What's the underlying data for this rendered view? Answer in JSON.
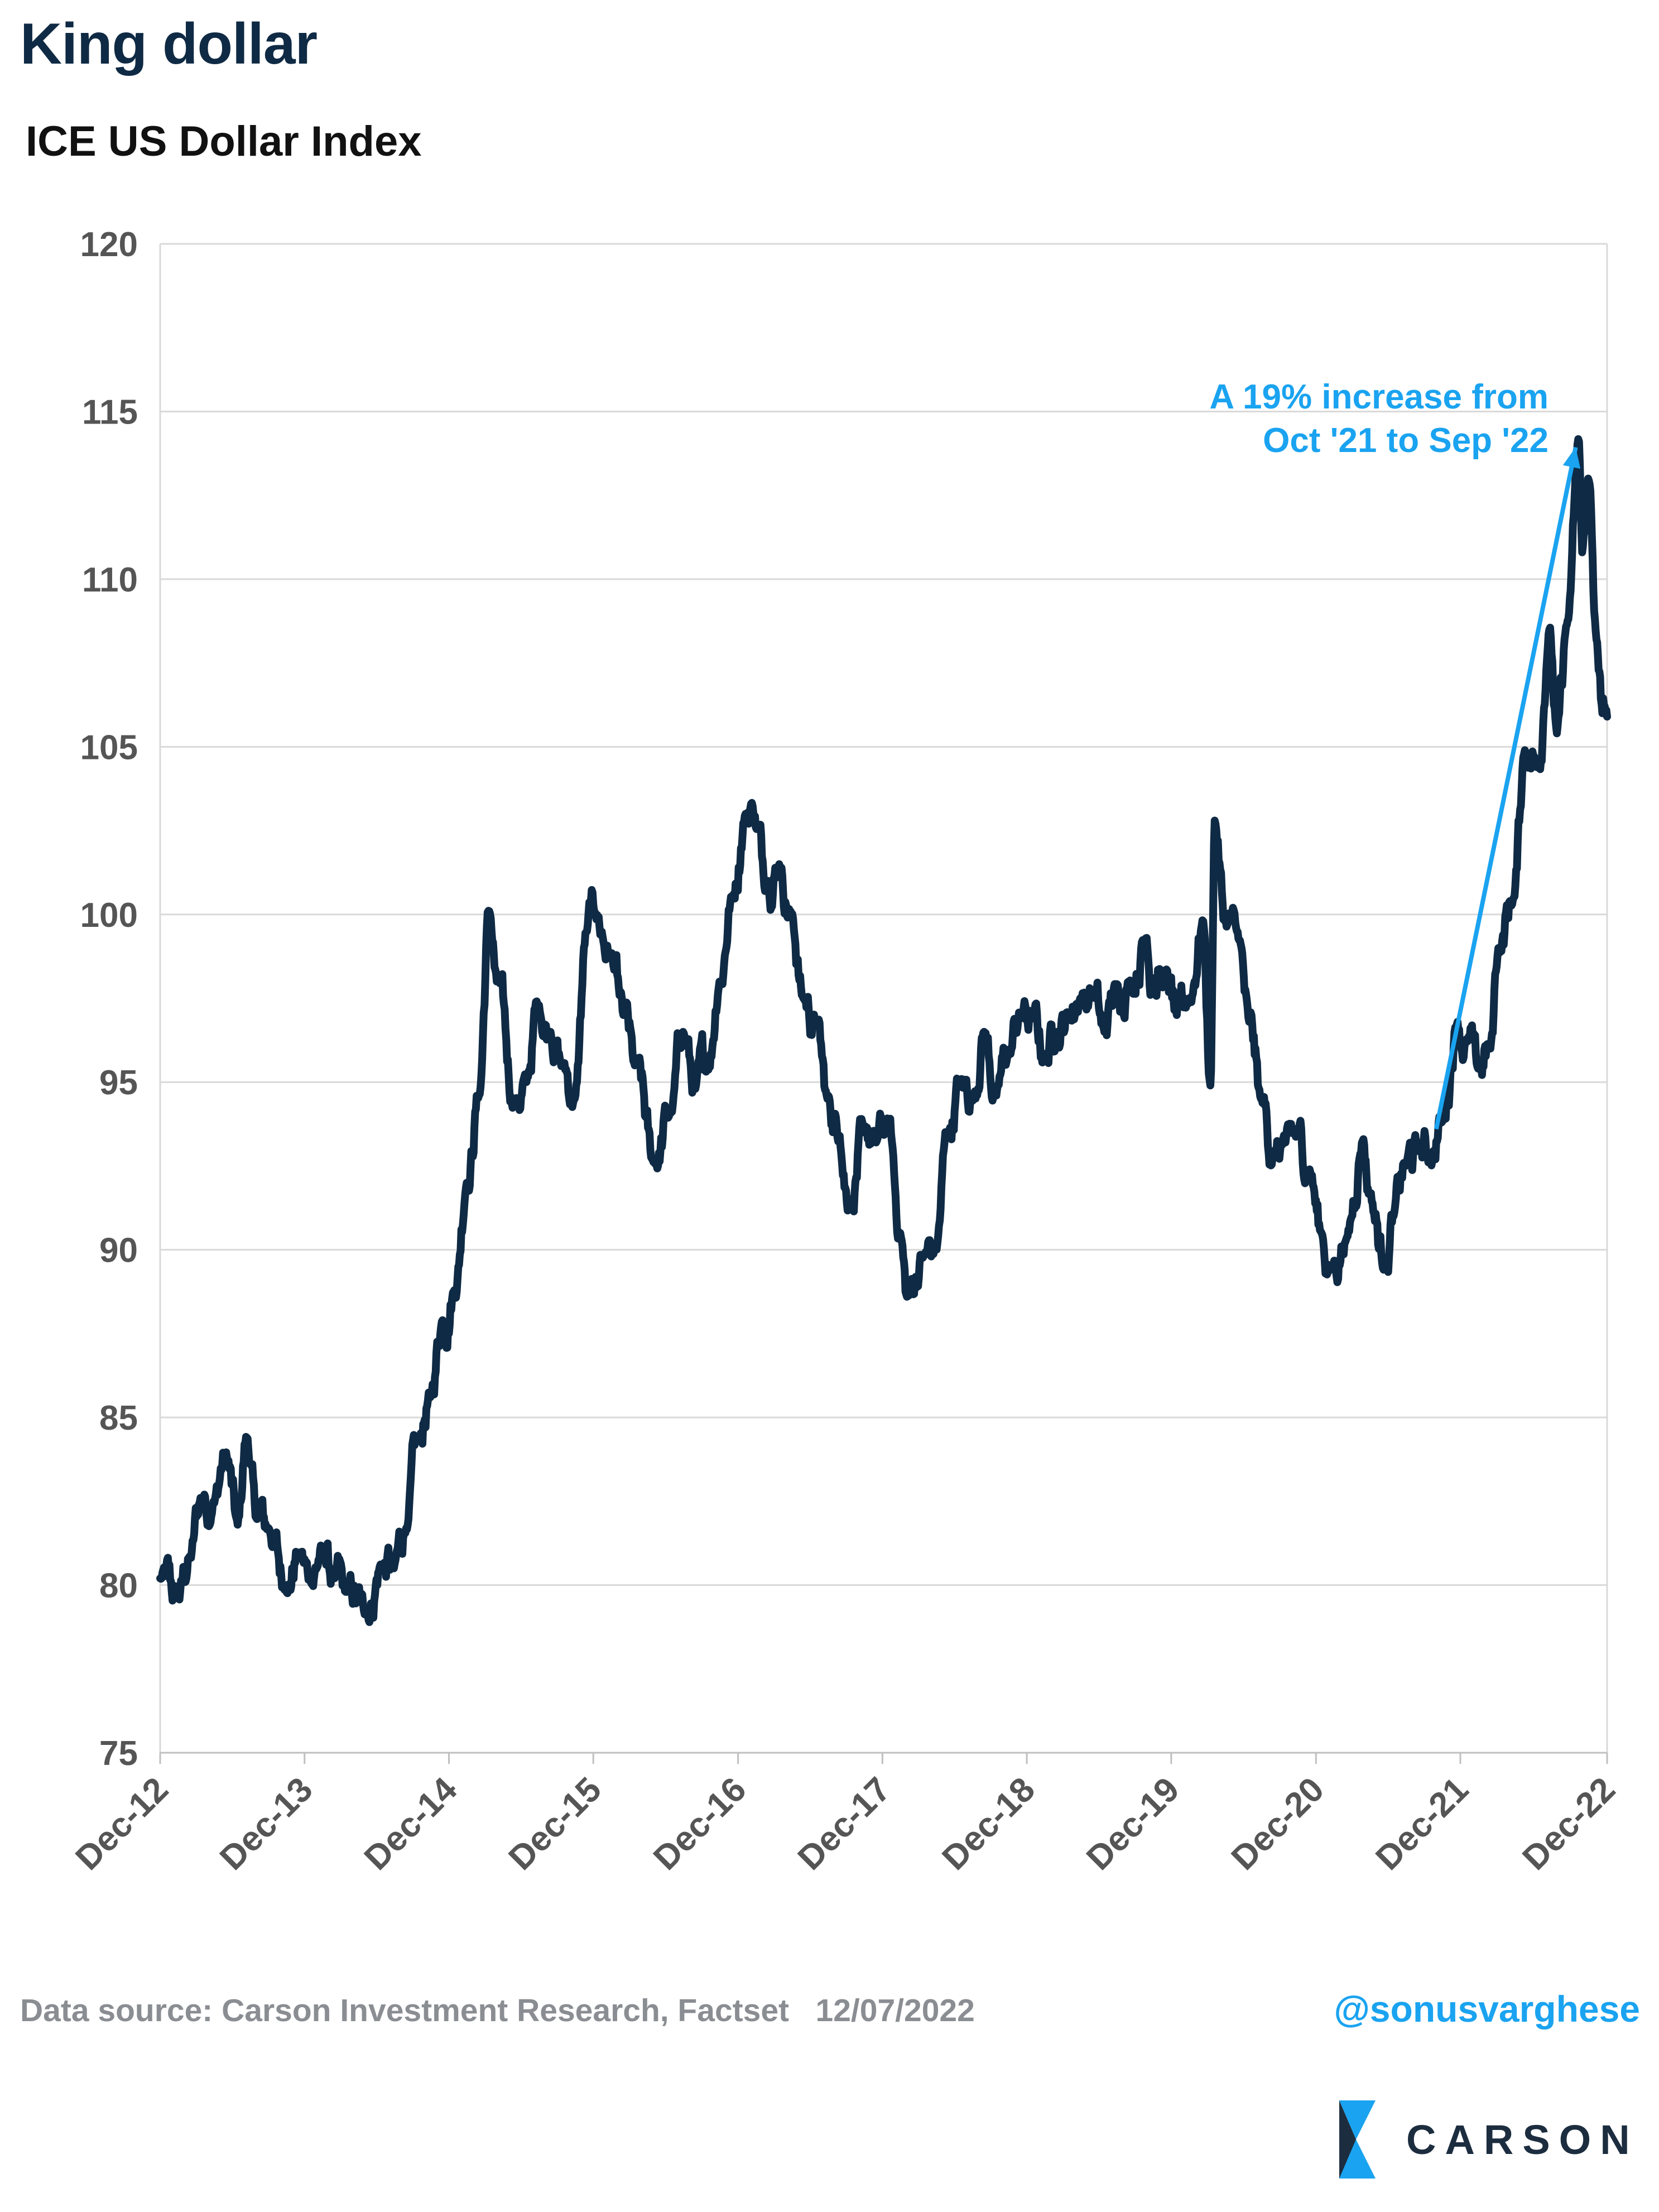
{
  "header": {
    "title": "King dollar",
    "subtitle": "ICE US Dollar Index"
  },
  "footer": {
    "source": "Data source: Carson Investment Research, Factset   12/07/2022",
    "handle": "@sonusvarghese"
  },
  "logo": {
    "text": "CARSON",
    "icon": "carson-chevron-icon"
  },
  "colors": {
    "series": "#0f2a44",
    "annotation": "#1aa3f0",
    "grid": "#d9d9d9",
    "axis_text": "#555555"
  },
  "chart_data": {
    "type": "line",
    "ylim": [
      75,
      120
    ],
    "yticks": [
      75,
      80,
      85,
      90,
      95,
      100,
      105,
      110,
      115,
      120
    ],
    "xlim": [
      "Dec-12",
      "Dec-22"
    ],
    "xticks": [
      "Dec-12",
      "Dec-13",
      "Dec-14",
      "Dec-15",
      "Dec-16",
      "Dec-17",
      "Dec-18",
      "Dec-19",
      "Dec-20",
      "Dec-21",
      "Dec-22"
    ],
    "grid": true,
    "legend": "none",
    "series": [
      {
        "values_points": [
          [
            "2012-12-01",
            80.2
          ],
          [
            "2013-01-15",
            79.6
          ],
          [
            "2013-02-15",
            80.8
          ],
          [
            "2013-03-15",
            82.6
          ],
          [
            "2013-04-15",
            82.5
          ],
          [
            "2013-05-15",
            83.9
          ],
          [
            "2013-06-15",
            81.8
          ],
          [
            "2013-07-08",
            84.4
          ],
          [
            "2013-08-01",
            82.0
          ],
          [
            "2013-09-01",
            81.7
          ],
          [
            "2013-10-15",
            80.0
          ],
          [
            "2013-11-15",
            80.9
          ],
          [
            "2013-12-15",
            80.2
          ],
          [
            "2014-01-15",
            81.0
          ],
          [
            "2014-02-15",
            80.2
          ],
          [
            "2014-03-15",
            79.8
          ],
          [
            "2014-05-06",
            79.2
          ],
          [
            "2014-06-15",
            80.6
          ],
          [
            "2014-07-15",
            80.5
          ],
          [
            "2014-08-15",
            81.7
          ],
          [
            "2014-09-15",
            84.3
          ],
          [
            "2014-10-15",
            85.6
          ],
          [
            "2014-11-15",
            87.9
          ],
          [
            "2014-12-15",
            88.8
          ],
          [
            "2015-01-15",
            92.0
          ],
          [
            "2015-02-15",
            94.6
          ],
          [
            "2015-03-13",
            100.1
          ],
          [
            "2015-04-01",
            98.0
          ],
          [
            "2015-05-15",
            94.4
          ],
          [
            "2015-06-15",
            95.0
          ],
          [
            "2015-07-15",
            97.3
          ],
          [
            "2015-08-15",
            96.5
          ],
          [
            "2015-09-15",
            95.5
          ],
          [
            "2015-10-15",
            94.5
          ],
          [
            "2015-11-15",
            99.5
          ],
          [
            "2015-12-03",
            100.1
          ],
          [
            "2016-01-15",
            98.8
          ],
          [
            "2016-02-15",
            97.0
          ],
          [
            "2016-03-15",
            95.5
          ],
          [
            "2016-05-03",
            92.6
          ],
          [
            "2016-06-15",
            94.1
          ],
          [
            "2016-07-15",
            96.5
          ],
          [
            "2016-08-15",
            94.8
          ],
          [
            "2016-09-15",
            95.5
          ],
          [
            "2016-10-15",
            98.0
          ],
          [
            "2016-11-15",
            100.5
          ],
          [
            "2016-12-20",
            103.0
          ],
          [
            "2017-01-03",
            103.3
          ],
          [
            "2017-02-15",
            101.0
          ],
          [
            "2017-03-15",
            101.5
          ],
          [
            "2017-04-15",
            100.0
          ],
          [
            "2017-05-15",
            97.5
          ],
          [
            "2017-06-15",
            96.8
          ],
          [
            "2017-07-15",
            94.5
          ],
          [
            "2017-08-15",
            93.4
          ],
          [
            "2017-09-08",
            91.4
          ],
          [
            "2017-10-15",
            93.5
          ],
          [
            "2017-11-15",
            93.2
          ],
          [
            "2017-12-15",
            93.8
          ],
          [
            "2018-01-15",
            90.5
          ],
          [
            "2018-02-01",
            88.6
          ],
          [
            "2018-03-15",
            89.8
          ],
          [
            "2018-04-15",
            90.0
          ],
          [
            "2018-05-15",
            93.5
          ],
          [
            "2018-06-15",
            94.9
          ],
          [
            "2018-07-15",
            94.5
          ],
          [
            "2018-08-15",
            96.5
          ],
          [
            "2018-09-15",
            94.6
          ],
          [
            "2018-10-15",
            95.8
          ],
          [
            "2018-11-15",
            97.0
          ],
          [
            "2018-12-15",
            96.9
          ],
          [
            "2019-01-15",
            95.8
          ],
          [
            "2019-02-15",
            96.5
          ],
          [
            "2019-03-15",
            97.0
          ],
          [
            "2019-04-15",
            97.5
          ],
          [
            "2019-05-15",
            97.7
          ],
          [
            "2019-06-15",
            96.5
          ],
          [
            "2019-07-15",
            97.8
          ],
          [
            "2019-08-15",
            98.0
          ],
          [
            "2019-09-30",
            99.3
          ],
          [
            "2019-10-15",
            98.1
          ],
          [
            "2019-11-15",
            98.1
          ],
          [
            "2019-12-15",
            97.0
          ],
          [
            "2020-01-15",
            97.5
          ],
          [
            "2020-02-20",
            99.8
          ],
          [
            "2020-03-09",
            94.9
          ],
          [
            "2020-03-20",
            102.8
          ],
          [
            "2020-04-15",
            99.8
          ],
          [
            "2020-05-15",
            99.5
          ],
          [
            "2020-06-15",
            96.8
          ],
          [
            "2020-07-15",
            94.5
          ],
          [
            "2020-08-15",
            92.8
          ],
          [
            "2020-09-15",
            93.2
          ],
          [
            "2020-10-15",
            93.4
          ],
          [
            "2020-11-15",
            92.4
          ],
          [
            "2020-12-15",
            90.5
          ],
          [
            "2021-01-06",
            89.4
          ],
          [
            "2021-02-15",
            90.3
          ],
          [
            "2021-03-31",
            93.3
          ],
          [
            "2021-04-15",
            91.7
          ],
          [
            "2021-05-25",
            89.6
          ],
          [
            "2021-06-15",
            91.0
          ],
          [
            "2021-07-15",
            92.5
          ],
          [
            "2021-08-15",
            93.0
          ],
          [
            "2021-09-15",
            92.8
          ],
          [
            "2021-10-15",
            93.8
          ],
          [
            "2021-11-24",
            96.8
          ],
          [
            "2021-12-15",
            96.2
          ],
          [
            "2022-01-15",
            95.4
          ],
          [
            "2022-02-15",
            96.0
          ],
          [
            "2022-03-07",
            99.0
          ],
          [
            "2022-04-15",
            100.5
          ],
          [
            "2022-05-13",
            104.9
          ],
          [
            "2022-06-15",
            104.5
          ],
          [
            "2022-07-14",
            108.5
          ],
          [
            "2022-08-02",
            105.4
          ],
          [
            "2022-08-31",
            108.8
          ],
          [
            "2022-09-27",
            114.1
          ],
          [
            "2022-10-05",
            110.8
          ],
          [
            "2022-10-20",
            113.0
          ],
          [
            "2022-11-10",
            108.2
          ],
          [
            "2022-11-25",
            106.0
          ],
          [
            "2022-12-07",
            105.9
          ]
        ]
      }
    ],
    "annotation": {
      "text_lines": [
        "A 19% increase from",
        "Oct '21 to Sep '22"
      ],
      "from": [
        "2021-10-01",
        93.6
      ],
      "to": [
        "2022-09-27",
        114.1
      ]
    }
  }
}
